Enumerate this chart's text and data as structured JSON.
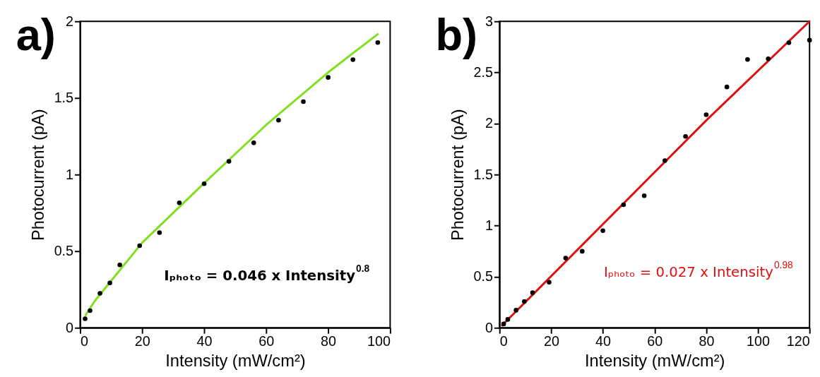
{
  "chart_data": [
    {
      "type": "scatter",
      "title": "a)",
      "xlabel": "Intensity (mW/cm²)",
      "ylabel": "Photocurrent (pA)",
      "annotations": [
        "Iₚₕₒₜₒ = 0.046 x Intensity$^{0.8}$"
      ],
      "xlim": [
        0,
        100
      ],
      "xticks": [
        0,
        20,
        40,
        60,
        80,
        100
      ],
      "ylim": [
        0,
        2
      ],
      "yticks": [
        0,
        0.5,
        1,
        1.5,
        2
      ],
      "grid": false,
      "x": [
        1.6,
        3.2,
        6.4,
        9.6,
        12.8,
        19.2,
        25.6,
        32,
        40,
        48,
        56,
        64,
        72,
        80,
        88,
        96
      ],
      "series": [
        {
          "marker": "circle",
          "color": "#000000",
          "values": [
            0.059,
            0.112,
            0.225,
            0.293,
            0.41,
            0.536,
            0.621,
            0.816,
            0.94,
            1.086,
            1.207,
            1.355,
            1.476,
            1.634,
            1.75,
            1.862
          ]
        },
        {
          "type": "line",
          "marker": "none",
          "color": "#80e020",
          "x": [
            1.6,
            4.7,
            9.5,
            20,
            40,
            60,
            80,
            96.2
          ],
          "values": [
            0.077,
            0.174,
            0.294,
            0.555,
            0.944,
            1.324,
            1.667,
            1.92
          ]
        }
      ]
    },
    {
      "type": "scatter",
      "title": "b)",
      "xlabel": "Intensity (mW/cm²)",
      "ylabel": "Photocurrent (pA)",
      "annotations": [
        "Iₚₕₒₜₒ = 0.027 x Intensity$^{0.98}$"
      ],
      "xlim": [
        0,
        120
      ],
      "xticks": [
        0,
        20,
        40,
        60,
        80,
        100,
        120
      ],
      "ylim": [
        0,
        3
      ],
      "yticks": [
        0,
        0.5,
        1,
        1.5,
        2,
        2.5,
        3
      ],
      "grid": false,
      "x": [
        1.6,
        3.2,
        6.4,
        9.6,
        12.8,
        19.2,
        25.6,
        32,
        40,
        48,
        56,
        64,
        72,
        80,
        88,
        96,
        104,
        112,
        120
      ],
      "series": [
        {
          "marker": "circle",
          "color": "#000000",
          "values": [
            0.037,
            0.082,
            0.172,
            0.257,
            0.343,
            0.446,
            0.682,
            0.749,
            0.951,
            1.205,
            1.293,
            1.637,
            1.873,
            2.086,
            2.358,
            2.627,
            2.634,
            2.791,
            2.816
          ]
        },
        {
          "type": "line",
          "marker": "none",
          "color": "#e01010",
          "x": [
            0.75,
            80,
            120
          ],
          "values": [
            0.017,
            2.03,
            3.0
          ]
        }
      ]
    }
  ]
}
